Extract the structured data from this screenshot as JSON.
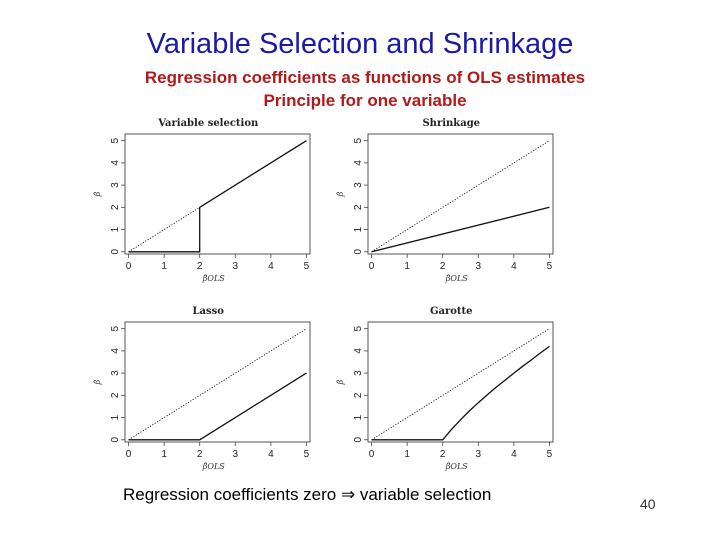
{
  "slide": {
    "title": "Variable Selection and Shrinkage",
    "subtitle_line1": "Regression coefficients as functions of OLS estimates",
    "subtitle_line2": "Principle for one variable",
    "caption": "Regression coefficients zero ⇒ variable selection",
    "page_number": "40"
  },
  "chart_data": [
    {
      "type": "line",
      "title": "Variable selection",
      "xlabel": "β̂OLS",
      "ylabel": "β̂",
      "xlim": [
        -0.1,
        5.1
      ],
      "ylim": [
        -0.1,
        5.3
      ],
      "xticks": [
        "0",
        "1",
        "2",
        "3",
        "4",
        "5"
      ],
      "yticks": [
        "0",
        "1",
        "2",
        "3",
        "4",
        "5"
      ],
      "series": [
        {
          "style": "dotted",
          "x": [
            0,
            5
          ],
          "y": [
            0,
            5
          ]
        },
        {
          "style": "solid",
          "x": [
            0,
            2,
            2,
            5
          ],
          "y": [
            0,
            0,
            2,
            5
          ]
        }
      ]
    },
    {
      "type": "line",
      "title": "Shrinkage",
      "xlabel": "β̂OLS",
      "ylabel": "β̂",
      "xlim": [
        -0.1,
        5.1
      ],
      "ylim": [
        -0.1,
        5.3
      ],
      "xticks": [
        "0",
        "1",
        "2",
        "3",
        "4",
        "5"
      ],
      "yticks": [
        "0",
        "1",
        "2",
        "3",
        "4",
        "5"
      ],
      "series": [
        {
          "style": "dotted",
          "x": [
            0,
            5
          ],
          "y": [
            0,
            5
          ]
        },
        {
          "style": "solid",
          "x": [
            0,
            5
          ],
          "y": [
            0,
            2
          ]
        }
      ]
    },
    {
      "type": "line",
      "title": "Lasso",
      "xlabel": "β̂OLS",
      "ylabel": "β̂",
      "xlim": [
        -0.1,
        5.1
      ],
      "ylim": [
        -0.1,
        5.3
      ],
      "xticks": [
        "0",
        "1",
        "2",
        "3",
        "4",
        "5"
      ],
      "yticks": [
        "0",
        "1",
        "2",
        "3",
        "4",
        "5"
      ],
      "series": [
        {
          "style": "dotted",
          "x": [
            0,
            5
          ],
          "y": [
            0,
            5
          ]
        },
        {
          "style": "solid",
          "x": [
            0,
            2,
            5
          ],
          "y": [
            0,
            0,
            3
          ]
        }
      ]
    },
    {
      "type": "line",
      "title": "Garotte",
      "xlabel": "β̂OLS",
      "ylabel": "β̂",
      "xlim": [
        -0.1,
        5.1
      ],
      "ylim": [
        -0.1,
        5.3
      ],
      "xticks": [
        "0",
        "1",
        "2",
        "3",
        "4",
        "5"
      ],
      "yticks": [
        "0",
        "1",
        "2",
        "3",
        "4",
        "5"
      ],
      "series": [
        {
          "style": "dotted",
          "x": [
            0,
            5
          ],
          "y": [
            0,
            5
          ]
        },
        {
          "style": "solid",
          "x": [
            0,
            2,
            2.25,
            2.5,
            2.75,
            3,
            3.25,
            3.5,
            3.75,
            4,
            4.25,
            4.5,
            4.75,
            5
          ],
          "y": [
            0,
            0,
            0.47,
            0.9,
            1.3,
            1.67,
            2.02,
            2.36,
            2.68,
            3.0,
            3.31,
            3.61,
            3.91,
            4.2
          ]
        }
      ]
    }
  ]
}
